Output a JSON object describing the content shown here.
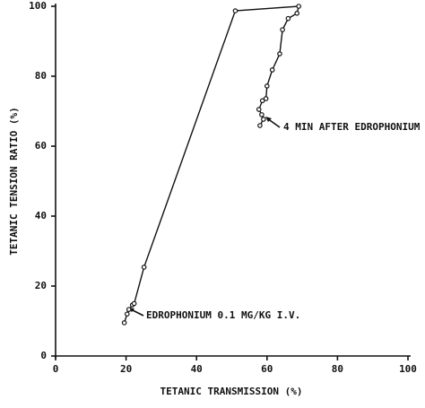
{
  "chart_data": {
    "type": "line",
    "x_label": "TETANIC TRANSMISSION (%)",
    "y_label": "TETANIC TENSION RATIO (%)",
    "x": [
      19.5,
      20.3,
      20.8,
      21.8,
      22.3,
      25.1,
      51,
      69,
      68.5,
      66,
      64.4,
      63.6,
      61.5,
      60,
      59.7,
      58.7,
      57.7,
      58.5,
      59,
      58
    ],
    "series": [
      {
        "color": "#111111",
        "values": [
          9.5,
          12,
          13.3,
          14.6,
          15,
          25.4,
          98.7,
          100,
          98,
          96.5,
          93.3,
          86.4,
          81.8,
          77.2,
          73.6,
          73,
          70.5,
          69,
          67.7,
          65.9
        ]
      }
    ],
    "xlim": [
      0,
      100
    ],
    "xticks": [
      0,
      20,
      40,
      60,
      80,
      100
    ],
    "ylim": [
      0,
      100
    ],
    "yticks": [
      0,
      20,
      40,
      60,
      80,
      100
    ],
    "annotations": [
      "4 MIN  AFTER EDROPHONIUM",
      "EDROPHONIUM 0.1 MG/KG I.V."
    ]
  }
}
